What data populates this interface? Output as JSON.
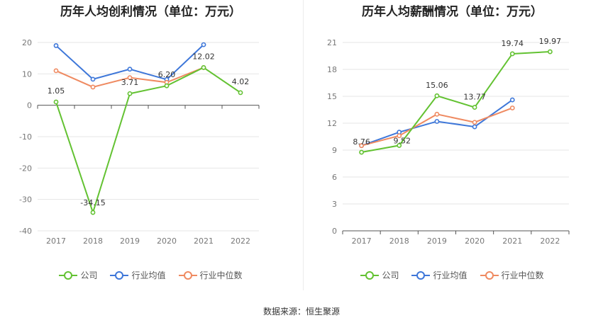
{
  "source_label": "数据来源：恒生聚源",
  "colors": {
    "company": "#63c232",
    "industry_avg": "#3e77d9",
    "industry_median": "#ef8a61"
  },
  "chart_data": [
    {
      "type": "line",
      "title": "历年人均创利情况（单位：万元）",
      "x": [
        "2017",
        "2018",
        "2019",
        "2020",
        "2021",
        "2022"
      ],
      "ylim": [
        -40,
        20
      ],
      "yticks": [
        20,
        10,
        0,
        -10,
        -20,
        -30,
        -40
      ],
      "grid": true,
      "legend": "bottom",
      "series": [
        {
          "name": "公司",
          "key": "company",
          "values": [
            1.05,
            -34.15,
            3.71,
            6.2,
            12.02,
            4.02
          ],
          "labels": [
            "1.05",
            "-34.15",
            "3.71",
            "6.20",
            "12.02",
            "4.02"
          ]
        },
        {
          "name": "行业均值",
          "key": "industry_avg",
          "values": [
            19.0,
            8.3,
            11.5,
            8.2,
            19.3,
            null
          ]
        },
        {
          "name": "行业中位数",
          "key": "industry_median",
          "values": [
            11.0,
            5.8,
            8.8,
            7.3,
            12.0,
            null
          ]
        }
      ]
    },
    {
      "type": "line",
      "title": "历年人均薪酬情况（单位：万元）",
      "x": [
        "2017",
        "2018",
        "2019",
        "2020",
        "2021",
        "2022"
      ],
      "ylim": [
        0,
        21
      ],
      "yticks": [
        21,
        18,
        15,
        12,
        9,
        6,
        3,
        0
      ],
      "grid": true,
      "legend": "bottom",
      "series": [
        {
          "name": "公司",
          "key": "company",
          "values": [
            8.76,
            9.52,
            15.06,
            13.77,
            19.74,
            19.97
          ],
          "labels": [
            "8.76",
            "9.52",
            "15.06",
            "13.77",
            "19.74",
            "19.97"
          ]
        },
        {
          "name": "行业均值",
          "key": "industry_avg",
          "values": [
            9.5,
            11.0,
            12.2,
            11.6,
            14.6,
            null
          ]
        },
        {
          "name": "行业中位数",
          "key": "industry_median",
          "values": [
            9.5,
            10.6,
            13.0,
            12.1,
            13.7,
            null
          ]
        }
      ]
    }
  ]
}
